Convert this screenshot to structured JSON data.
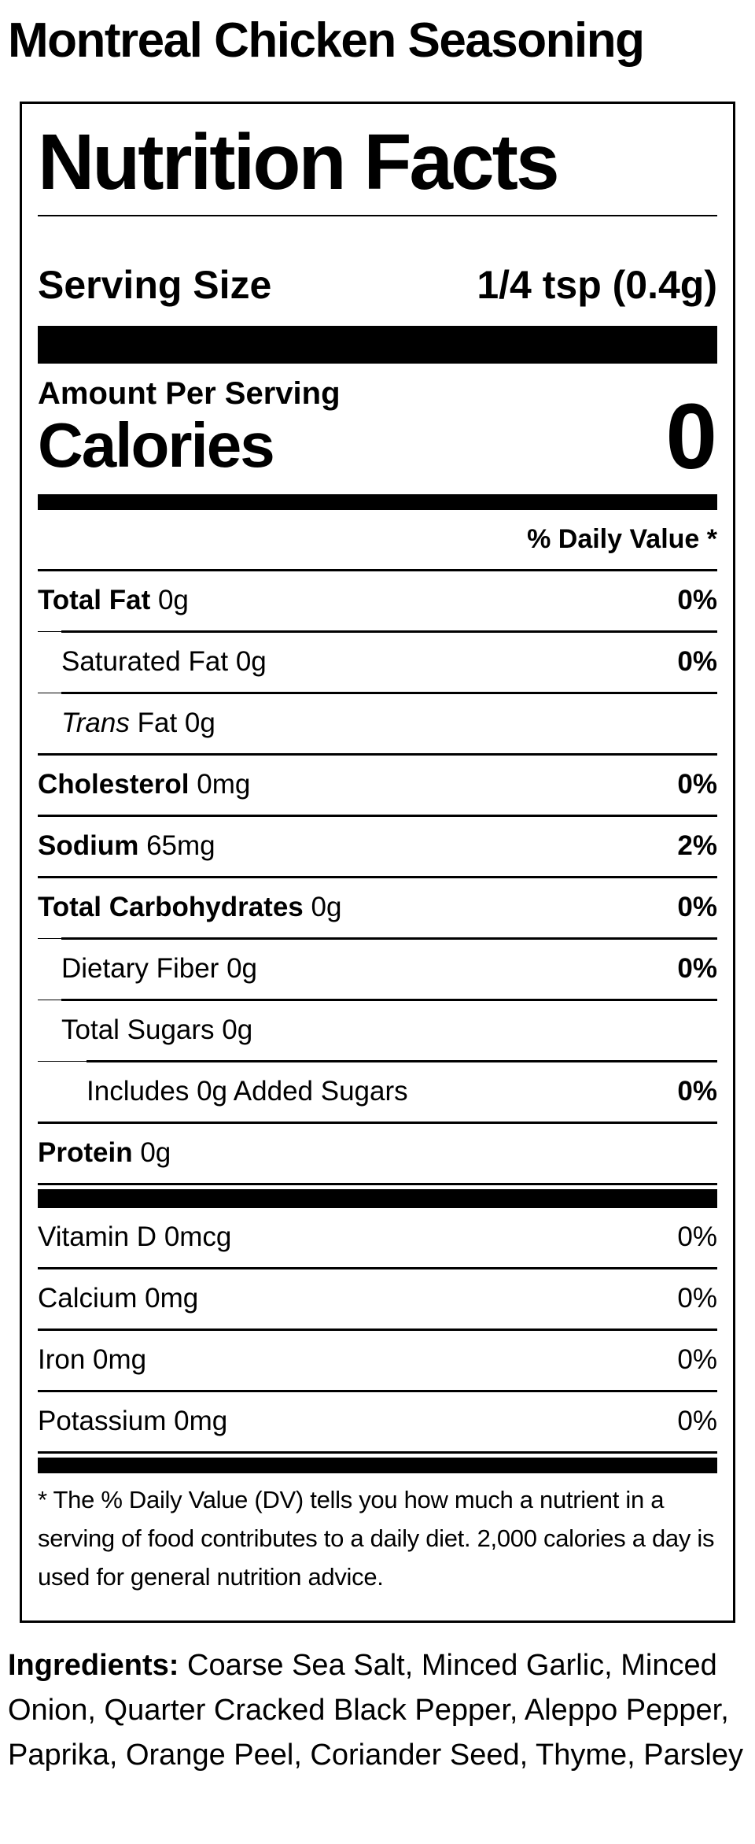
{
  "page": {
    "title": "Montreal Chicken Seasoning"
  },
  "colors": {
    "text": "#000000",
    "background": "#ffffff",
    "bars": "#000000"
  },
  "label": {
    "heading": "Nutrition Facts",
    "serving": {
      "label": "Serving Size",
      "value": "1/4 tsp (0.4g)"
    },
    "amount_per_serving": "Amount Per Serving",
    "calories_label": "Calories",
    "calories_value": "0",
    "daily_value_header": "% Daily Value *",
    "rows": [
      {
        "label": "Total Fat",
        "amount": "0g",
        "dv": "0%"
      },
      {
        "label": "Saturated Fat",
        "amount": "0g",
        "dv": "0%"
      },
      {
        "label_italic": "Trans",
        "label": "Fat",
        "amount": "0g",
        "dv": ""
      },
      {
        "label": "Cholesterol",
        "amount": "0mg",
        "dv": "0%"
      },
      {
        "label": "Sodium",
        "amount": "65mg",
        "dv": "2%"
      },
      {
        "label": "Total Carbohydrates",
        "amount": "0g",
        "dv": "0%"
      },
      {
        "label": "Dietary Fiber",
        "amount": "0g",
        "dv": "0%"
      },
      {
        "label": "Total Sugars",
        "amount": "0g",
        "dv": ""
      },
      {
        "label": "Includes 0g Added Sugars",
        "amount": "",
        "dv": "0%"
      },
      {
        "label": "Protein",
        "amount": "0g",
        "dv": ""
      }
    ],
    "micronutrients": [
      {
        "label": "Vitamin D",
        "amount": "0mcg",
        "dv": "0%"
      },
      {
        "label": "Calcium",
        "amount": "0mg",
        "dv": "0%"
      },
      {
        "label": "Iron",
        "amount": "0mg",
        "dv": "0%"
      },
      {
        "label": "Potassium",
        "amount": "0mg",
        "dv": "0%"
      }
    ],
    "footnote": "* The % Daily Value (DV) tells you how much a nutrient in a serving of food contributes to a daily diet. 2,000 calories a day is used for general nutrition advice."
  },
  "ingredients": {
    "label": "Ingredients:",
    "text": "Coarse Sea Salt, Minced Garlic, Minced Onion, Quarter Cracked Black Pepper, Aleppo Pepper, Paprika, Orange Peel, Coriander Seed, Thyme, Parsley"
  }
}
